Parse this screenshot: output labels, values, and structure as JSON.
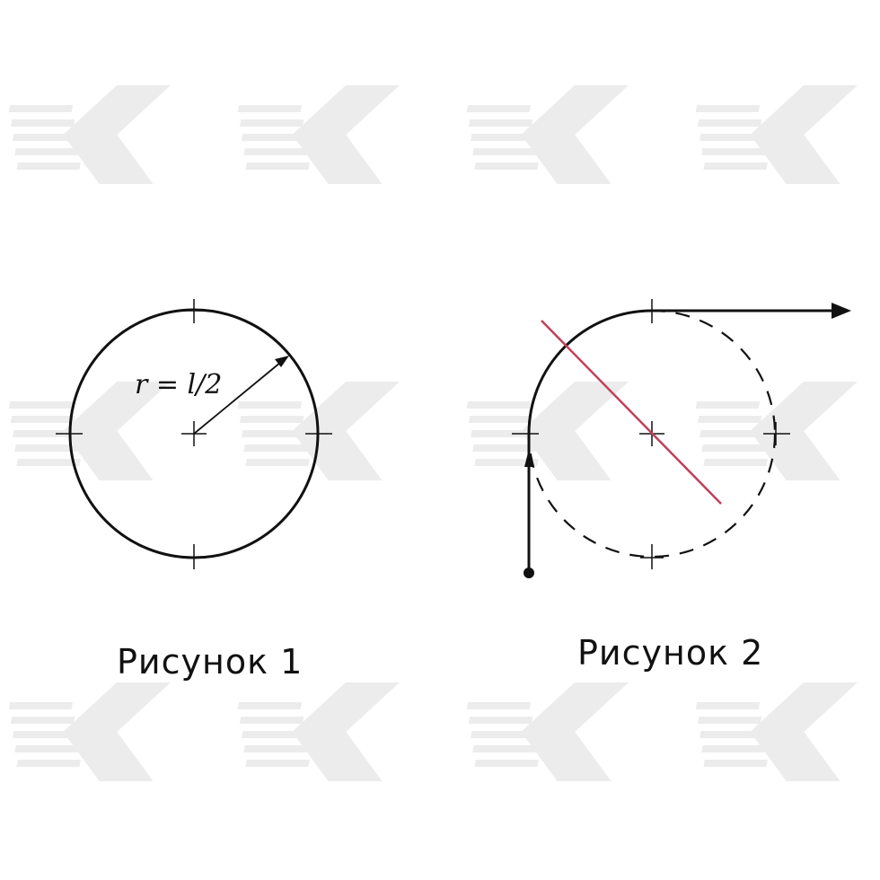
{
  "figure_1": {
    "caption": "Рисунок 1",
    "formula": "r = l/2"
  },
  "figure_2": {
    "caption": "Рисунок 2"
  },
  "colors": {
    "ink": "#111111",
    "accent_line": "#c0405a",
    "watermark": "#ececec"
  }
}
